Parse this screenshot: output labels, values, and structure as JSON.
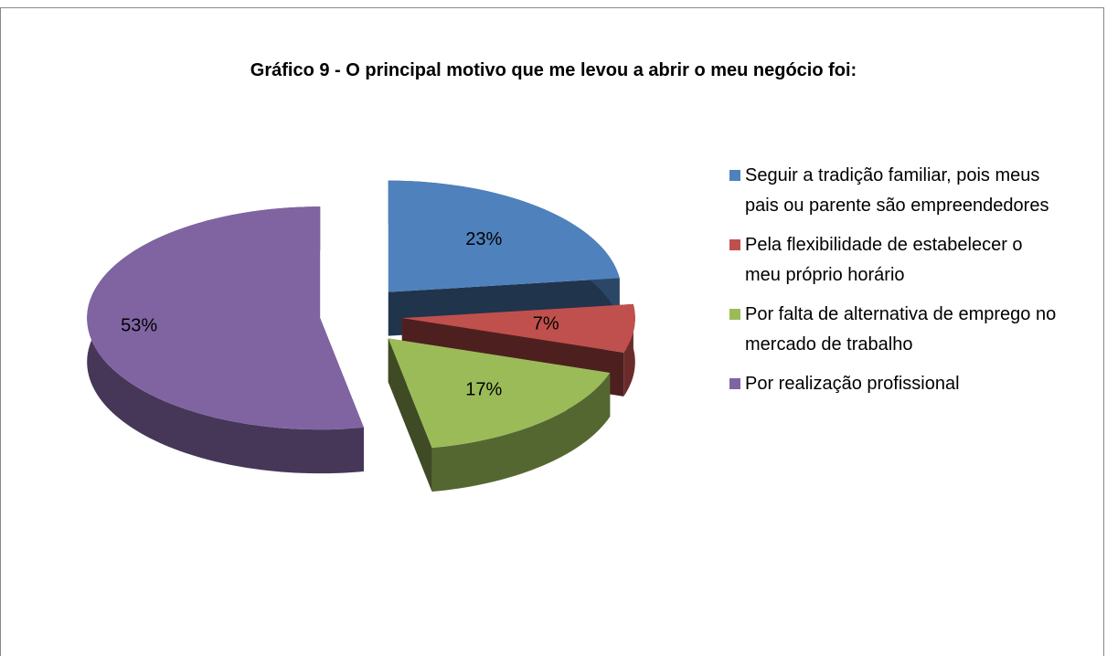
{
  "chart_data": {
    "type": "pie",
    "title": "Gráfico 9 - O principal motivo que me levou a abrir o meu negócio foi:",
    "categories": [
      "Seguir a tradição familiar, pois meus pais ou parente são empreendedores",
      "Pela flexibilidade de estabelecer o meu próprio horário",
      "Por falta de alternativa de emprego no mercado de trabalho",
      "Por realização profissional"
    ],
    "values": [
      23,
      7,
      17,
      53
    ],
    "value_labels": [
      "23%",
      "7%",
      "17%",
      "53%"
    ],
    "colors": [
      "#4f81bd",
      "#c0504d",
      "#9bbb59",
      "#8064a2"
    ],
    "legend": "right"
  }
}
